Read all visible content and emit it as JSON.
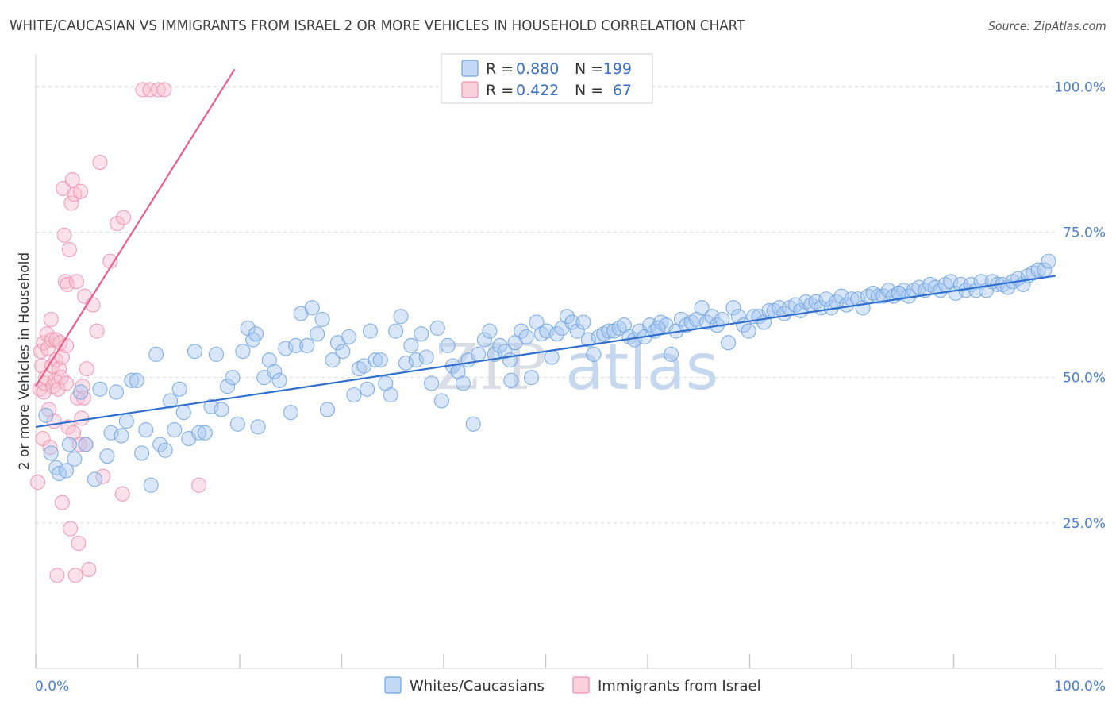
{
  "title": "WHITE/CAUCASIAN VS IMMIGRANTS FROM ISRAEL 2 OR MORE VEHICLES IN HOUSEHOLD CORRELATION CHART",
  "source": "Source: ZipAtlas.com",
  "watermark": {
    "part1": "ZIP",
    "part2": "atlas"
  },
  "colors": {
    "blue": "#6fa3e0",
    "blue_fill": "#a9c8ef",
    "blue_line": "#2f6fd1",
    "pink": "#ef8fae",
    "pink_fill": "#f6bfd0",
    "pink_line": "#e8608a",
    "grid": "#d9d9d9",
    "tick_text": "#4a7fd0"
  },
  "legend": {
    "rows": [
      {
        "r_label": "R =",
        "r_value": "0.880",
        "n_label": "N =",
        "n_value": "199"
      },
      {
        "r_label": "R =",
        "r_value": "0.422",
        "n_label": "N =",
        "n_value": "67"
      }
    ]
  },
  "chart_data": {
    "type": "scatter",
    "title": "WHITE/CAUCASIAN VS IMMIGRANTS FROM ISRAEL 2 OR MORE VEHICLES IN HOUSEHOLD CORRELATION CHART",
    "xlabel": "",
    "ylabel": "2 or more Vehicles in Household",
    "xlim": [
      0,
      100
    ],
    "ylim": [
      0,
      104
    ],
    "x_tick_labels": [
      "0.0%",
      "100.0%"
    ],
    "y_ticks": [
      25,
      50,
      75,
      100
    ],
    "y_tick_labels": [
      "25.0%",
      "50.0%",
      "75.0%",
      "100.0%"
    ],
    "grid": true,
    "legend_position": "bottom",
    "series": [
      {
        "name": "Whites/Caucasians",
        "color": "#6fa3e0",
        "trend": {
          "x": [
            0,
            100
          ],
          "y": [
            41.5,
            67.5
          ]
        },
        "points": [
          [
            1.0,
            43.5
          ],
          [
            1.5,
            37.0
          ],
          [
            2.0,
            34.5
          ],
          [
            2.3,
            33.5
          ],
          [
            3.0,
            34.0
          ],
          [
            3.3,
            38.5
          ],
          [
            3.8,
            36.0
          ],
          [
            4.4,
            47.5
          ],
          [
            4.9,
            38.5
          ],
          [
            5.8,
            32.5
          ],
          [
            6.3,
            48.0
          ],
          [
            7.0,
            36.5
          ],
          [
            7.4,
            40.5
          ],
          [
            7.9,
            47.5
          ],
          [
            8.4,
            40.0
          ],
          [
            8.9,
            42.5
          ],
          [
            9.4,
            49.5
          ],
          [
            9.9,
            49.5
          ],
          [
            10.4,
            37.0
          ],
          [
            10.8,
            41.0
          ],
          [
            11.3,
            31.5
          ],
          [
            11.8,
            54.0
          ],
          [
            12.2,
            38.5
          ],
          [
            12.7,
            37.5
          ],
          [
            13.2,
            46.0
          ],
          [
            13.6,
            41.0
          ],
          [
            14.1,
            48.0
          ],
          [
            14.5,
            44.0
          ],
          [
            15.0,
            39.5
          ],
          [
            15.6,
            54.5
          ],
          [
            16.0,
            40.5
          ],
          [
            16.6,
            40.5
          ],
          [
            17.2,
            45.0
          ],
          [
            17.7,
            54.0
          ],
          [
            18.2,
            44.5
          ],
          [
            18.8,
            48.5
          ],
          [
            19.3,
            50.0
          ],
          [
            19.8,
            42.0
          ],
          [
            20.3,
            54.5
          ],
          [
            20.8,
            58.5
          ],
          [
            21.3,
            56.5
          ],
          [
            21.8,
            41.5
          ],
          [
            22.4,
            50.0
          ],
          [
            22.9,
            53.0
          ],
          [
            23.4,
            51.0
          ],
          [
            23.9,
            49.5
          ],
          [
            24.5,
            55.0
          ],
          [
            25.0,
            44.0
          ],
          [
            25.5,
            55.5
          ],
          [
            26.0,
            61.0
          ],
          [
            26.6,
            55.5
          ],
          [
            27.1,
            62.0
          ],
          [
            27.6,
            57.5
          ],
          [
            28.1,
            60.0
          ],
          [
            28.6,
            44.5
          ],
          [
            29.1,
            53.0
          ],
          [
            29.6,
            56.0
          ],
          [
            30.1,
            54.5
          ],
          [
            30.7,
            57.0
          ],
          [
            31.2,
            47.0
          ],
          [
            31.7,
            51.5
          ],
          [
            32.2,
            52.0
          ],
          [
            32.8,
            58.0
          ],
          [
            33.3,
            53.0
          ],
          [
            33.8,
            53.0
          ],
          [
            34.3,
            49.0
          ],
          [
            34.8,
            47.0
          ],
          [
            35.3,
            58.0
          ],
          [
            35.8,
            60.5
          ],
          [
            36.3,
            52.5
          ],
          [
            36.8,
            55.5
          ],
          [
            37.3,
            53.0
          ],
          [
            37.8,
            57.5
          ],
          [
            38.3,
            53.5
          ],
          [
            38.8,
            49.0
          ],
          [
            39.4,
            58.5
          ],
          [
            39.8,
            46.0
          ],
          [
            40.4,
            55.5
          ],
          [
            40.9,
            52.0
          ],
          [
            41.4,
            51.0
          ],
          [
            41.9,
            49.0
          ],
          [
            42.4,
            53.0
          ],
          [
            42.9,
            42.0
          ],
          [
            43.4,
            54.0
          ],
          [
            44.0,
            56.5
          ],
          [
            44.5,
            58.0
          ],
          [
            45.0,
            54.0
          ],
          [
            45.5,
            55.5
          ],
          [
            46.0,
            54.5
          ],
          [
            46.5,
            53.0
          ],
          [
            47.0,
            56.0
          ],
          [
            47.6,
            58.0
          ],
          [
            48.1,
            57.0
          ],
          [
            48.6,
            50.0
          ],
          [
            49.1,
            59.5
          ],
          [
            49.6,
            57.5
          ],
          [
            50.1,
            58.0
          ],
          [
            50.6,
            53.5
          ],
          [
            51.1,
            57.5
          ],
          [
            51.6,
            58.5
          ],
          [
            52.1,
            60.5
          ],
          [
            52.6,
            59.5
          ],
          [
            53.1,
            58.0
          ],
          [
            53.7,
            59.5
          ],
          [
            54.2,
            56.5
          ],
          [
            54.7,
            54.0
          ],
          [
            55.2,
            57.0
          ],
          [
            55.7,
            57.5
          ],
          [
            56.2,
            58.0
          ],
          [
            56.7,
            58.0
          ],
          [
            57.2,
            58.5
          ],
          [
            57.7,
            59.0
          ],
          [
            58.2,
            57.0
          ],
          [
            58.7,
            56.5
          ],
          [
            59.2,
            58.0
          ],
          [
            59.7,
            57.0
          ],
          [
            60.2,
            59.0
          ],
          [
            60.7,
            58.0
          ],
          [
            61.3,
            59.5
          ],
          [
            61.8,
            59.0
          ],
          [
            62.3,
            54.0
          ],
          [
            62.8,
            58.0
          ],
          [
            63.3,
            60.0
          ],
          [
            63.8,
            59.0
          ],
          [
            64.3,
            59.5
          ],
          [
            64.8,
            60.0
          ],
          [
            65.3,
            62.0
          ],
          [
            65.8,
            59.5
          ],
          [
            66.3,
            60.5
          ],
          [
            66.8,
            59.0
          ],
          [
            67.3,
            60.0
          ],
          [
            67.9,
            56.0
          ],
          [
            68.4,
            62.0
          ],
          [
            68.9,
            60.5
          ],
          [
            69.4,
            59.0
          ],
          [
            69.9,
            58.0
          ],
          [
            70.4,
            60.5
          ],
          [
            70.9,
            60.5
          ],
          [
            71.4,
            59.5
          ],
          [
            71.9,
            61.5
          ],
          [
            72.4,
            61.5
          ],
          [
            72.9,
            62.0
          ],
          [
            73.4,
            61.0
          ],
          [
            73.9,
            62.0
          ],
          [
            74.5,
            62.5
          ],
          [
            75.0,
            61.5
          ],
          [
            75.5,
            63.0
          ],
          [
            76.0,
            62.5
          ],
          [
            76.5,
            63.0
          ],
          [
            77.0,
            62.0
          ],
          [
            77.5,
            63.5
          ],
          [
            78.0,
            62.0
          ],
          [
            78.5,
            63.0
          ],
          [
            79.0,
            64.0
          ],
          [
            79.5,
            62.5
          ],
          [
            80.0,
            63.5
          ],
          [
            80.6,
            63.5
          ],
          [
            81.1,
            62.0
          ],
          [
            81.6,
            64.0
          ],
          [
            82.1,
            64.5
          ],
          [
            82.6,
            64.0
          ],
          [
            83.1,
            64.0
          ],
          [
            83.6,
            65.0
          ],
          [
            84.1,
            64.0
          ],
          [
            84.6,
            64.5
          ],
          [
            85.1,
            65.0
          ],
          [
            85.6,
            64.0
          ],
          [
            86.1,
            65.0
          ],
          [
            86.6,
            65.5
          ],
          [
            87.2,
            65.0
          ],
          [
            87.7,
            66.0
          ],
          [
            88.2,
            65.5
          ],
          [
            88.7,
            65.0
          ],
          [
            89.2,
            66.0
          ],
          [
            89.7,
            66.5
          ],
          [
            90.2,
            64.5
          ],
          [
            90.7,
            66.0
          ],
          [
            91.2,
            65.0
          ],
          [
            91.7,
            66.0
          ],
          [
            92.2,
            65.0
          ],
          [
            92.7,
            66.5
          ],
          [
            93.2,
            65.0
          ],
          [
            93.8,
            66.5
          ],
          [
            94.3,
            66.0
          ],
          [
            94.8,
            66.0
          ],
          [
            95.3,
            65.5
          ],
          [
            95.8,
            66.5
          ],
          [
            96.3,
            67.0
          ],
          [
            96.8,
            66.0
          ],
          [
            97.3,
            67.5
          ],
          [
            97.8,
            68.0
          ],
          [
            98.3,
            68.5
          ],
          [
            98.9,
            68.5
          ],
          [
            99.3,
            70.0
          ],
          [
            84.6,
            64.5
          ],
          [
            61.0,
            58.5
          ],
          [
            46.6,
            49.5
          ],
          [
            32.5,
            48.0
          ],
          [
            21.6,
            57.5
          ]
        ]
      },
      {
        "name": "Immigrants from Israel",
        "color": "#ef8fae",
        "trend": {
          "x": [
            0,
            19.5
          ],
          "y": [
            48.5,
            103.0
          ]
        },
        "points": [
          [
            0.2,
            32.0
          ],
          [
            0.4,
            48.0
          ],
          [
            0.5,
            54.5
          ],
          [
            0.6,
            52.0
          ],
          [
            0.7,
            39.5
          ],
          [
            0.8,
            47.5
          ],
          [
            0.8,
            56.0
          ],
          [
            0.9,
            49.0
          ],
          [
            1.0,
            50.0
          ],
          [
            1.1,
            57.5
          ],
          [
            1.2,
            55.0
          ],
          [
            1.3,
            44.5
          ],
          [
            1.4,
            38.0
          ],
          [
            1.5,
            60.0
          ],
          [
            1.6,
            52.0
          ],
          [
            1.6,
            56.5
          ],
          [
            1.7,
            48.5
          ],
          [
            1.8,
            42.5
          ],
          [
            1.9,
            49.5
          ],
          [
            2.0,
            53.0
          ],
          [
            2.0,
            56.5
          ],
          [
            2.1,
            16.0
          ],
          [
            2.2,
            48.0
          ],
          [
            2.3,
            51.5
          ],
          [
            2.4,
            56.0
          ],
          [
            2.5,
            50.0
          ],
          [
            2.6,
            53.5
          ],
          [
            2.6,
            28.5
          ],
          [
            2.7,
            82.5
          ],
          [
            2.8,
            74.5
          ],
          [
            2.9,
            66.5
          ],
          [
            3.0,
            55.5
          ],
          [
            3.0,
            49.0
          ],
          [
            3.1,
            66.0
          ],
          [
            3.2,
            41.5
          ],
          [
            3.3,
            72.0
          ],
          [
            3.4,
            24.0
          ],
          [
            3.5,
            80.0
          ],
          [
            3.6,
            84.0
          ],
          [
            3.7,
            40.5
          ],
          [
            3.8,
            81.5
          ],
          [
            3.9,
            16.0
          ],
          [
            4.0,
            66.5
          ],
          [
            4.1,
            46.5
          ],
          [
            4.2,
            21.5
          ],
          [
            4.3,
            38.5
          ],
          [
            4.4,
            82.0
          ],
          [
            4.5,
            43.0
          ],
          [
            4.6,
            48.5
          ],
          [
            4.7,
            46.5
          ],
          [
            4.8,
            64.0
          ],
          [
            4.9,
            38.5
          ],
          [
            5.0,
            51.5
          ],
          [
            5.2,
            17.0
          ],
          [
            5.6,
            62.5
          ],
          [
            6.0,
            58.0
          ],
          [
            6.3,
            87.0
          ],
          [
            6.6,
            33.0
          ],
          [
            7.3,
            70.0
          ],
          [
            8.0,
            76.5
          ],
          [
            8.5,
            30.0
          ],
          [
            8.6,
            77.5
          ],
          [
            10.5,
            99.5
          ],
          [
            11.2,
            99.5
          ],
          [
            12.0,
            99.5
          ],
          [
            12.6,
            99.5
          ],
          [
            16.0,
            31.5
          ]
        ]
      }
    ]
  }
}
